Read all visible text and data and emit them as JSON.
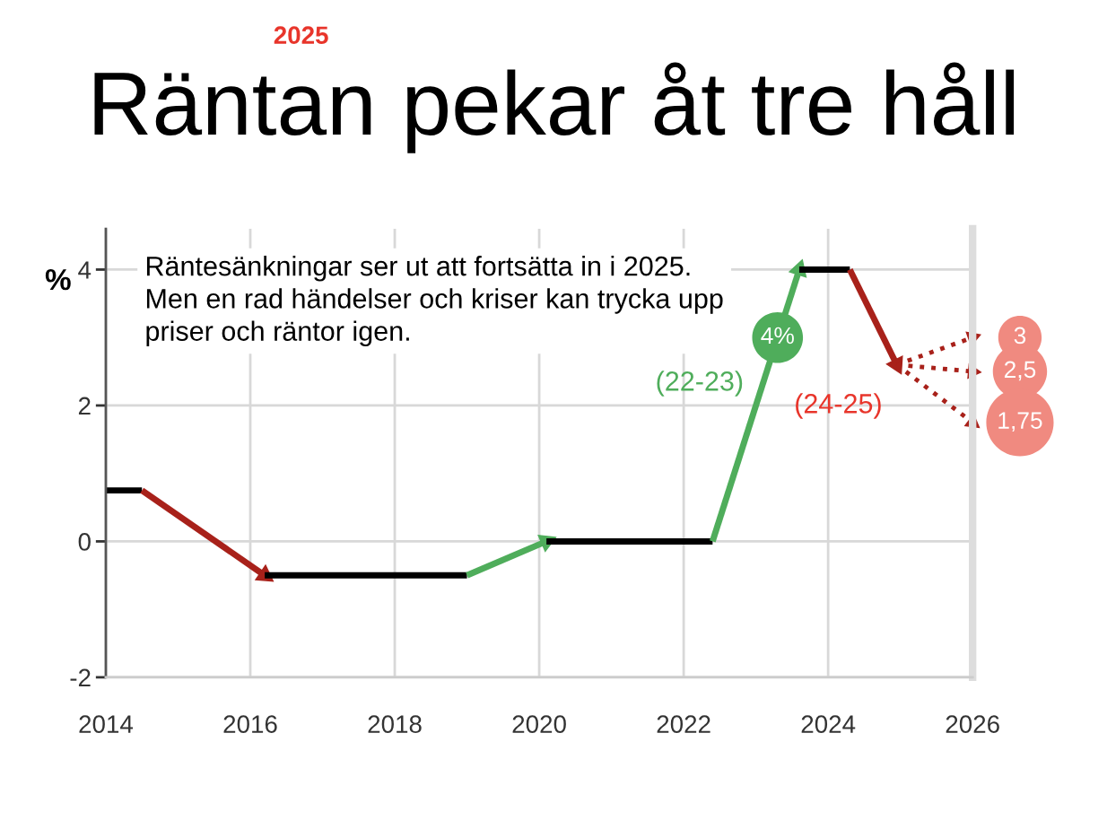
{
  "chart_data": {
    "type": "line",
    "title": "Räntan pekar åt tre håll",
    "subtitle": "2025",
    "ylabel": "%",
    "xlim": [
      2014,
      2026
    ],
    "xticks": [
      2014,
      2016,
      2018,
      2020,
      2022,
      2024,
      2026
    ],
    "ylim": [
      -2,
      4.6
    ],
    "yticks": [
      -2,
      0,
      2,
      4
    ],
    "grid": true,
    "series": [
      {
        "color": "#000000",
        "x": [
          2014,
          2014.5
        ],
        "values": [
          0.75,
          0.75
        ],
        "marker": "none"
      },
      {
        "color": "#a8211a",
        "x": [
          2014.5,
          2016.2
        ],
        "values": [
          0.75,
          -0.5
        ],
        "marker": "triangle"
      },
      {
        "color": "#000000",
        "x": [
          2016.2,
          2019
        ],
        "values": [
          -0.5,
          -0.5
        ],
        "marker": "none"
      },
      {
        "color": "#4fad5b",
        "x": [
          2019,
          2020.1
        ],
        "values": [
          -0.5,
          0
        ],
        "marker": "triangle"
      },
      {
        "color": "#000000",
        "x": [
          2020.1,
          2022.4
        ],
        "values": [
          0,
          0
        ],
        "marker": "none"
      },
      {
        "color": "#4fad5b",
        "x": [
          2022.4,
          2023.6
        ],
        "values": [
          0,
          4
        ],
        "marker": "triangle",
        "value_labels": [
          null,
          "4%"
        ]
      },
      {
        "color": "#000000",
        "x": [
          2023.6,
          2024.3
        ],
        "values": [
          4,
          4
        ],
        "marker": "none"
      },
      {
        "color": "#a8211a",
        "x": [
          2024.3,
          2024.95
        ],
        "values": [
          4,
          2.6
        ],
        "marker": "triangle"
      },
      {
        "color": "#a8211a",
        "x": [
          2024.95,
          2026
        ],
        "values": [
          2.6,
          3
        ],
        "marker": "triangle",
        "line_style": "dotted",
        "value_labels": [
          null,
          "3"
        ]
      },
      {
        "color": "#a8211a",
        "x": [
          2024.95,
          2026
        ],
        "values": [
          2.6,
          2.5
        ],
        "marker": "triangle",
        "line_style": "dotted",
        "value_labels": [
          null,
          "2,5"
        ]
      },
      {
        "color": "#a8211a",
        "x": [
          2024.95,
          2026
        ],
        "values": [
          2.6,
          1.75
        ],
        "marker": "triangle",
        "line_style": "dotted",
        "value_labels": [
          null,
          "1,75"
        ]
      }
    ],
    "annotations": [
      "Räntesänkningar ser ut att fortsätta in i 2025. Men en rad händelser och kriser kan trycka upp priser och räntor igen.",
      "(22-23)",
      "(24-25)"
    ]
  }
}
